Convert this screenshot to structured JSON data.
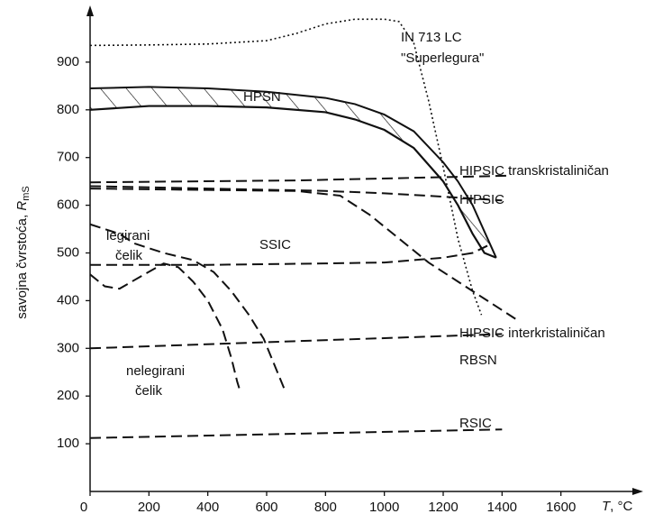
{
  "chart_data": {
    "type": "line",
    "ylabel": {
      "text": "savojna čvrstoća, ",
      "symbol": "R",
      "sub": "mS"
    },
    "xlabel": {
      "symbol": "T",
      "unit": ", °C"
    },
    "xlim": [
      0,
      1800
    ],
    "ylim": [
      0,
      1000
    ],
    "xticks": [
      0,
      200,
      400,
      600,
      800,
      1000,
      1200,
      1400,
      1600
    ],
    "yticks": [
      100,
      200,
      300,
      400,
      500,
      600,
      700,
      800,
      900
    ],
    "series": [
      {
        "name": "IN 713 LC",
        "annotation": "\"Superlegura\"",
        "style": "dotted",
        "color": "#111111",
        "x": [
          0,
          200,
          400,
          600,
          700,
          800,
          900,
          1000,
          1050,
          1100,
          1150,
          1200,
          1250,
          1300,
          1330
        ],
        "values": [
          935,
          936,
          938,
          945,
          960,
          980,
          990,
          990,
          985,
          940,
          820,
          680,
          530,
          420,
          370
        ]
      },
      {
        "name": "HPSN",
        "style": "solid",
        "color": "#111111",
        "x": [
          0,
          200,
          400,
          600,
          800,
          900,
          1000,
          1100,
          1200,
          1250,
          1300,
          1340,
          1380
        ],
        "values": [
          845,
          848,
          845,
          838,
          825,
          812,
          790,
          755,
          690,
          650,
          600,
          545,
          490
        ],
        "lower": [
          800,
          808,
          808,
          805,
          795,
          780,
          758,
          720,
          650,
          600,
          540,
          500,
          490
        ]
      },
      {
        "name": "HIPSIC transkristaliničan",
        "style": "dashed",
        "color": "#111111",
        "x": [
          0,
          700,
          1430
        ],
        "values": [
          648,
          652,
          662
        ]
      },
      {
        "name": "HIPSIC",
        "style": "dashed",
        "color": "#111111",
        "x": [
          0,
          800,
          1000,
          1200,
          1400
        ],
        "values": [
          640,
          630,
          625,
          618,
          610
        ]
      },
      {
        "name": "HIPSIC interkristaliničan",
        "style": "dashed",
        "color": "#111111",
        "x": [
          0,
          400,
          700,
          850,
          950,
          1050,
          1150,
          1250,
          1350,
          1450
        ],
        "values": [
          635,
          632,
          630,
          620,
          580,
          530,
          480,
          440,
          400,
          360
        ]
      },
      {
        "name": "SSIC",
        "style": "dashed",
        "color": "#111111",
        "x": [
          0,
          400,
          800,
          1000,
          1200,
          1300,
          1350
        ],
        "values": [
          475,
          475,
          478,
          480,
          490,
          500,
          515
        ]
      },
      {
        "name": "RBSN",
        "style": "dashed",
        "color": "#111111",
        "x": [
          0,
          1400
        ],
        "values": [
          300,
          330
        ]
      },
      {
        "name": "RSIC",
        "style": "dashed",
        "color": "#111111",
        "x": [
          0,
          1400
        ],
        "values": [
          112,
          130
        ]
      },
      {
        "name": "legirani čelik",
        "style": "dashed",
        "color": "#111111",
        "x": [
          0,
          100,
          150,
          250,
          350,
          420,
          480,
          540,
          590,
          630,
          660
        ],
        "values": [
          560,
          540,
          520,
          500,
          485,
          460,
          420,
          370,
          320,
          260,
          215
        ]
      },
      {
        "name": "nelegirani čelik",
        "style": "dashed",
        "color": "#111111",
        "x": [
          0,
          50,
          100,
          170,
          250,
          300,
          350,
          400,
          450,
          480,
          500,
          510
        ],
        "values": [
          455,
          430,
          425,
          450,
          478,
          470,
          440,
          400,
          340,
          280,
          230,
          210
        ]
      }
    ]
  }
}
